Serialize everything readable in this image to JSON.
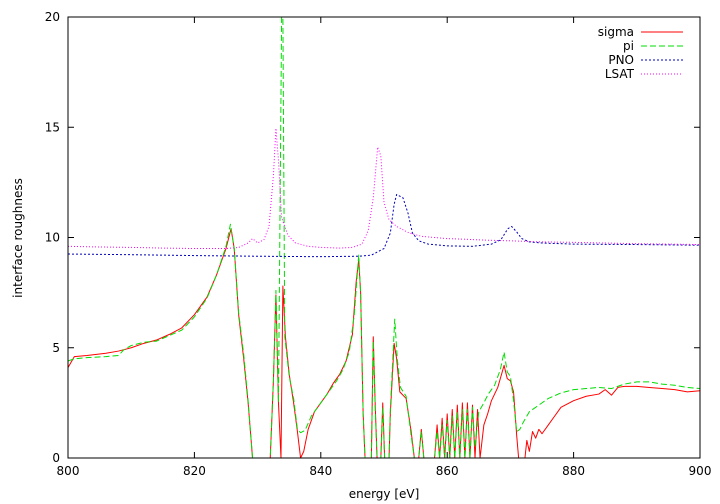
{
  "chart_data": {
    "type": "line",
    "title": "",
    "xlabel": "energy [eV]",
    "ylabel": "interface roughness",
    "xlim": [
      800,
      900
    ],
    "ylim": [
      0,
      20
    ],
    "xticks": [
      800,
      820,
      840,
      860,
      880,
      900
    ],
    "yticks": [
      0,
      5,
      10,
      15,
      20
    ],
    "grid": false,
    "legend": "top-right",
    "series": [
      {
        "name": "sigma",
        "color": "#ff0000",
        "dash": "solid",
        "points": [
          [
            800,
            4.1
          ],
          [
            801,
            4.6
          ],
          [
            803,
            4.65
          ],
          [
            806,
            4.75
          ],
          [
            808,
            4.85
          ],
          [
            810,
            5.0
          ],
          [
            812,
            5.2
          ],
          [
            814,
            5.35
          ],
          [
            816,
            5.6
          ],
          [
            818,
            5.9
          ],
          [
            820,
            6.5
          ],
          [
            822,
            7.3
          ],
          [
            823.5,
            8.3
          ],
          [
            825,
            9.5
          ],
          [
            825.8,
            10.4
          ],
          [
            826.3,
            9.5
          ],
          [
            827,
            6.5
          ],
          [
            827.8,
            4.5
          ],
          [
            828.5,
            2.5
          ],
          [
            829.2,
            0
          ],
          [
            832,
            0
          ],
          [
            832.5,
            3.5
          ],
          [
            832.9,
            7.4
          ],
          [
            833.3,
            2.5
          ],
          [
            833.7,
            0
          ],
          [
            834,
            7.8
          ],
          [
            834.4,
            5.5
          ],
          [
            835,
            3.8
          ],
          [
            835.7,
            2.5
          ],
          [
            836.3,
            1.2
          ],
          [
            836.8,
            0
          ],
          [
            837.3,
            0.3
          ],
          [
            838,
            1.3
          ],
          [
            839,
            2.1
          ],
          [
            840,
            2.5
          ],
          [
            841,
            2.9
          ],
          [
            842,
            3.4
          ],
          [
            843,
            3.8
          ],
          [
            844,
            4.4
          ],
          [
            845,
            5.6
          ],
          [
            845.6,
            8.0
          ],
          [
            846,
            9.0
          ],
          [
            846.3,
            7.5
          ],
          [
            846.7,
            2.0
          ],
          [
            847,
            0
          ],
          [
            848,
            0
          ],
          [
            848.3,
            5.5
          ],
          [
            848.6,
            2.5
          ],
          [
            848.9,
            0
          ],
          [
            849.5,
            0
          ],
          [
            849.8,
            2.5
          ],
          [
            850.1,
            0
          ],
          [
            850.8,
            0
          ],
          [
            851,
            2.0
          ],
          [
            851.6,
            5.2
          ],
          [
            852,
            4.5
          ],
          [
            852.5,
            3.0
          ],
          [
            853.5,
            2.7
          ],
          [
            854.3,
            1.2
          ],
          [
            854.8,
            0
          ],
          [
            855.5,
            0
          ],
          [
            855.9,
            1.3
          ],
          [
            856.3,
            0
          ],
          [
            858,
            0
          ],
          [
            858.4,
            1.5
          ],
          [
            858.8,
            0
          ],
          [
            859.2,
            1.8
          ],
          [
            859.6,
            0
          ],
          [
            860,
            2.0
          ],
          [
            860.4,
            0
          ],
          [
            860.8,
            2.2
          ],
          [
            861.2,
            0
          ],
          [
            861.6,
            2.4
          ],
          [
            862,
            0
          ],
          [
            862.4,
            2.5
          ],
          [
            862.8,
            0
          ],
          [
            863.2,
            2.5
          ],
          [
            863.6,
            0
          ],
          [
            864,
            2.4
          ],
          [
            864.4,
            0
          ],
          [
            864.8,
            2.2
          ],
          [
            865.2,
            0
          ],
          [
            865.8,
            1.5
          ],
          [
            866.4,
            2.0
          ],
          [
            867,
            2.6
          ],
          [
            868,
            3.2
          ],
          [
            868.6,
            3.8
          ],
          [
            869,
            4.2
          ],
          [
            869.5,
            3.6
          ],
          [
            870,
            3.5
          ],
          [
            870.5,
            3.0
          ],
          [
            871,
            1.0
          ],
          [
            871.3,
            0
          ],
          [
            872.3,
            0
          ],
          [
            872.6,
            0.8
          ],
          [
            873,
            0.3
          ],
          [
            873.5,
            1.2
          ],
          [
            874,
            0.9
          ],
          [
            874.5,
            1.3
          ],
          [
            875,
            1.1
          ],
          [
            876,
            1.5
          ],
          [
            877,
            1.9
          ],
          [
            878,
            2.3
          ],
          [
            880,
            2.6
          ],
          [
            882,
            2.8
          ],
          [
            884,
            2.9
          ],
          [
            885,
            3.1
          ],
          [
            886,
            2.85
          ],
          [
            887,
            3.2
          ],
          [
            888,
            3.25
          ],
          [
            890,
            3.25
          ],
          [
            892,
            3.2
          ],
          [
            894,
            3.15
          ],
          [
            896,
            3.1
          ],
          [
            898,
            3.0
          ],
          [
            900,
            3.05
          ]
        ]
      },
      {
        "name": "pi",
        "color": "#00dd00",
        "dash": "6,3",
        "points": [
          [
            800,
            4.4
          ],
          [
            801,
            4.5
          ],
          [
            803,
            4.55
          ],
          [
            806,
            4.6
          ],
          [
            808,
            4.65
          ],
          [
            808.8,
            4.9
          ],
          [
            810,
            5.1
          ],
          [
            812,
            5.25
          ],
          [
            814,
            5.3
          ],
          [
            816,
            5.55
          ],
          [
            818,
            5.8
          ],
          [
            820,
            6.4
          ],
          [
            822,
            7.25
          ],
          [
            823.5,
            8.3
          ],
          [
            825,
            9.6
          ],
          [
            825.7,
            10.6
          ],
          [
            826.3,
            9.5
          ],
          [
            827,
            6.6
          ],
          [
            827.8,
            4.7
          ],
          [
            828.5,
            2.6
          ],
          [
            829.2,
            0
          ],
          [
            832,
            0
          ],
          [
            832.5,
            3.5
          ],
          [
            832.9,
            7.6
          ],
          [
            833.3,
            2.5
          ],
          [
            833.8,
            20
          ],
          [
            834,
            20
          ],
          [
            834.3,
            5.5
          ],
          [
            835,
            3.7
          ],
          [
            835.7,
            2.7
          ],
          [
            836.3,
            1.3
          ],
          [
            836.8,
            1.15
          ],
          [
            837.5,
            1.25
          ],
          [
            838.5,
            1.9
          ],
          [
            839.5,
            2.3
          ],
          [
            840.5,
            2.7
          ],
          [
            841.5,
            3.1
          ],
          [
            842.5,
            3.5
          ],
          [
            843.5,
            4.0
          ],
          [
            844.5,
            4.8
          ],
          [
            845.3,
            6.5
          ],
          [
            846,
            9.2
          ],
          [
            846.3,
            7.5
          ],
          [
            846.7,
            2.0
          ],
          [
            847,
            0
          ],
          [
            848,
            0
          ],
          [
            848.3,
            5.3
          ],
          [
            848.6,
            2.3
          ],
          [
            848.9,
            0
          ],
          [
            849.5,
            0
          ],
          [
            849.8,
            2.3
          ],
          [
            850.1,
            0
          ],
          [
            850.8,
            0
          ],
          [
            851,
            2.2
          ],
          [
            851.7,
            6.3
          ],
          [
            852.1,
            4.5
          ],
          [
            852.6,
            3.2
          ],
          [
            853.5,
            2.8
          ],
          [
            854.3,
            1.0
          ],
          [
            854.8,
            0
          ],
          [
            855.5,
            0
          ],
          [
            855.9,
            1.2
          ],
          [
            856.3,
            0
          ],
          [
            858,
            0
          ],
          [
            858.4,
            1.2
          ],
          [
            858.8,
            0
          ],
          [
            859.2,
            1.5
          ],
          [
            859.6,
            0
          ],
          [
            860,
            1.7
          ],
          [
            860.4,
            0
          ],
          [
            860.8,
            1.9
          ],
          [
            861.2,
            0
          ],
          [
            861.6,
            2.1
          ],
          [
            862,
            0
          ],
          [
            862.4,
            2.2
          ],
          [
            862.8,
            0
          ],
          [
            863.2,
            2.2
          ],
          [
            863.6,
            0
          ],
          [
            864,
            2.3
          ],
          [
            864.4,
            0.5
          ],
          [
            865,
            2.1
          ],
          [
            865.8,
            2.5
          ],
          [
            866.5,
            2.9
          ],
          [
            867.5,
            3.3
          ],
          [
            868.4,
            4.0
          ],
          [
            869,
            4.8
          ],
          [
            869.5,
            3.9
          ],
          [
            870,
            3.7
          ],
          [
            870.5,
            2.6
          ],
          [
            871,
            1.2
          ],
          [
            871.5,
            1.3
          ],
          [
            872,
            1.6
          ],
          [
            873,
            2.1
          ],
          [
            874,
            2.3
          ],
          [
            875,
            2.5
          ],
          [
            876,
            2.7
          ],
          [
            878,
            2.95
          ],
          [
            880,
            3.1
          ],
          [
            882,
            3.15
          ],
          [
            884,
            3.2
          ],
          [
            886,
            3.15
          ],
          [
            888,
            3.35
          ],
          [
            890,
            3.45
          ],
          [
            892,
            3.45
          ],
          [
            894,
            3.35
          ],
          [
            896,
            3.3
          ],
          [
            898,
            3.2
          ],
          [
            900,
            3.15
          ]
        ]
      },
      {
        "name": "PNO",
        "color": "#0000bb",
        "dash": "2,2",
        "points": [
          [
            800,
            9.25
          ],
          [
            810,
            9.22
          ],
          [
            820,
            9.18
          ],
          [
            830,
            9.15
          ],
          [
            840,
            9.13
          ],
          [
            846,
            9.15
          ],
          [
            848,
            9.2
          ],
          [
            850,
            9.5
          ],
          [
            851,
            10.2
          ],
          [
            851.6,
            11.5
          ],
          [
            852,
            11.95
          ],
          [
            853,
            11.8
          ],
          [
            853.8,
            11.1
          ],
          [
            854.5,
            10.2
          ],
          [
            855.5,
            9.85
          ],
          [
            857,
            9.7
          ],
          [
            860,
            9.62
          ],
          [
            864,
            9.6
          ],
          [
            867,
            9.7
          ],
          [
            868.5,
            9.9
          ],
          [
            869.6,
            10.4
          ],
          [
            870.2,
            10.5
          ],
          [
            871,
            10.25
          ],
          [
            871.8,
            9.95
          ],
          [
            873,
            9.8
          ],
          [
            875,
            9.75
          ],
          [
            880,
            9.7
          ],
          [
            890,
            9.68
          ],
          [
            900,
            9.65
          ]
        ]
      },
      {
        "name": "LSAT",
        "color": "#ff00ff",
        "dash": "1,2",
        "points": [
          [
            800,
            9.6
          ],
          [
            805,
            9.57
          ],
          [
            810,
            9.55
          ],
          [
            815,
            9.52
          ],
          [
            820,
            9.5
          ],
          [
            825,
            9.5
          ],
          [
            827,
            9.55
          ],
          [
            828.5,
            9.75
          ],
          [
            829.2,
            9.95
          ],
          [
            830,
            9.75
          ],
          [
            831,
            9.9
          ],
          [
            831.8,
            10.5
          ],
          [
            832.5,
            12.8
          ],
          [
            832.9,
            14.95
          ],
          [
            833.3,
            13.5
          ],
          [
            833.8,
            10.9
          ],
          [
            834.8,
            10.1
          ],
          [
            836,
            9.75
          ],
          [
            838,
            9.6
          ],
          [
            840,
            9.55
          ],
          [
            843,
            9.52
          ],
          [
            845,
            9.55
          ],
          [
            846.5,
            9.7
          ],
          [
            847.5,
            10.3
          ],
          [
            848.3,
            11.8
          ],
          [
            849,
            14.1
          ],
          [
            849.5,
            13.7
          ],
          [
            850,
            11.6
          ],
          [
            850.8,
            10.8
          ],
          [
            852,
            10.5
          ],
          [
            854,
            10.2
          ],
          [
            856,
            10.05
          ],
          [
            858,
            10.0
          ],
          [
            860,
            9.95
          ],
          [
            863,
            9.92
          ],
          [
            866,
            9.88
          ],
          [
            870,
            9.85
          ],
          [
            875,
            9.8
          ],
          [
            880,
            9.78
          ],
          [
            885,
            9.75
          ],
          [
            890,
            9.72
          ],
          [
            895,
            9.7
          ],
          [
            900,
            9.68
          ]
        ]
      }
    ]
  }
}
